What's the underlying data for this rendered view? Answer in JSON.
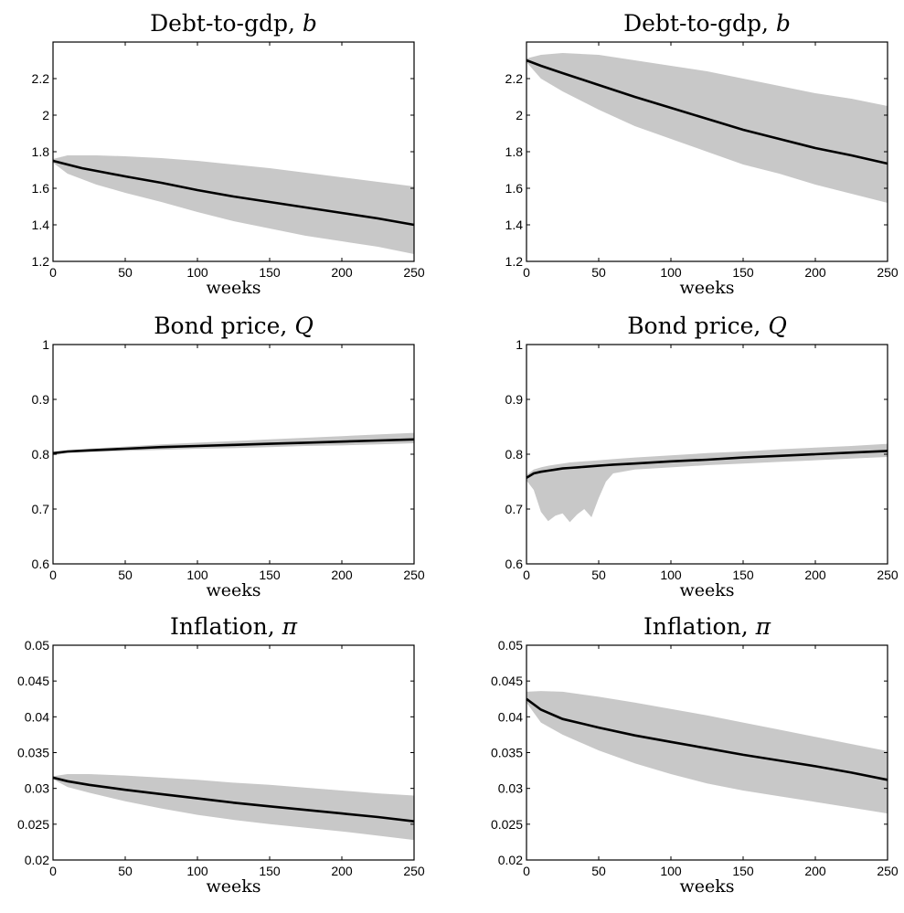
{
  "chart_data": [
    {
      "type": "line",
      "title": "Debt-to-gdp, ",
      "title_symbol": "b",
      "xlabel": "weeks",
      "ylabel": "",
      "xlim": [
        0,
        250
      ],
      "ylim": [
        1.2,
        2.4
      ],
      "xticks": [
        0,
        50,
        100,
        150,
        200,
        250
      ],
      "xtick_labels": [
        "0",
        "50",
        "100",
        "150",
        "200",
        "250"
      ],
      "yticks": [
        1.2,
        1.4,
        1.6,
        1.8,
        2,
        2.2
      ],
      "ytick_labels": [
        "1.2",
        "1.4",
        "1.6",
        "1.8",
        "2",
        "2.2"
      ],
      "x": [
        0,
        10,
        20,
        30,
        50,
        75,
        100,
        125,
        150,
        175,
        200,
        225,
        250
      ],
      "series": [
        {
          "role": "mean",
          "values": [
            1.75,
            1.73,
            1.71,
            1.695,
            1.665,
            1.63,
            1.59,
            1.555,
            1.525,
            1.495,
            1.465,
            1.435,
            1.4
          ]
        },
        {
          "role": "band_upper",
          "values": [
            1.76,
            1.78,
            1.78,
            1.78,
            1.775,
            1.765,
            1.75,
            1.73,
            1.71,
            1.685,
            1.66,
            1.635,
            1.61
          ]
        },
        {
          "role": "band_lower",
          "values": [
            1.74,
            1.68,
            1.65,
            1.62,
            1.575,
            1.525,
            1.47,
            1.42,
            1.38,
            1.34,
            1.31,
            1.28,
            1.24
          ]
        }
      ],
      "colors": {
        "mean": "#000000",
        "band": "#c8c8c8"
      },
      "grid": false
    },
    {
      "type": "line",
      "title": "Debt-to-gdp, ",
      "title_symbol": "b",
      "xlabel": "weeks",
      "ylabel": "",
      "xlim": [
        0,
        250
      ],
      "ylim": [
        1.2,
        2.4
      ],
      "xticks": [
        0,
        50,
        100,
        150,
        200,
        250
      ],
      "xtick_labels": [
        "0",
        "50",
        "100",
        "150",
        "200",
        "250"
      ],
      "yticks": [
        1.2,
        1.4,
        1.6,
        1.8,
        2,
        2.2
      ],
      "ytick_labels": [
        "1.2",
        "1.4",
        "1.6",
        "1.8",
        "2",
        "2.2"
      ],
      "x": [
        0,
        10,
        25,
        50,
        75,
        100,
        125,
        150,
        175,
        200,
        225,
        250
      ],
      "series": [
        {
          "role": "mean",
          "values": [
            2.3,
            2.27,
            2.23,
            2.165,
            2.1,
            2.04,
            1.98,
            1.92,
            1.87,
            1.82,
            1.78,
            1.735
          ]
        },
        {
          "role": "band_upper",
          "values": [
            2.31,
            2.33,
            2.34,
            2.33,
            2.3,
            2.27,
            2.24,
            2.2,
            2.16,
            2.12,
            2.09,
            2.05
          ]
        },
        {
          "role": "band_lower",
          "values": [
            2.29,
            2.2,
            2.13,
            2.03,
            1.94,
            1.87,
            1.8,
            1.73,
            1.68,
            1.62,
            1.57,
            1.52
          ]
        }
      ],
      "colors": {
        "mean": "#000000",
        "band": "#c8c8c8"
      },
      "grid": false
    },
    {
      "type": "line",
      "title": "Bond price, ",
      "title_symbol": "Q",
      "xlabel": "weeks",
      "ylabel": "",
      "xlim": [
        0,
        250
      ],
      "ylim": [
        0.6,
        1.0
      ],
      "xticks": [
        0,
        50,
        100,
        150,
        200,
        250
      ],
      "xtick_labels": [
        "0",
        "50",
        "100",
        "150",
        "200",
        "250"
      ],
      "yticks": [
        0.6,
        0.7,
        0.8,
        0.9,
        1.0
      ],
      "ytick_labels": [
        "0.6",
        "0.7",
        "0.8",
        "0.9",
        "1"
      ],
      "x": [
        0,
        10,
        25,
        50,
        75,
        100,
        125,
        150,
        175,
        200,
        225,
        250
      ],
      "series": [
        {
          "role": "mean",
          "values": [
            0.802,
            0.805,
            0.807,
            0.81,
            0.813,
            0.815,
            0.817,
            0.819,
            0.821,
            0.823,
            0.825,
            0.827
          ]
        },
        {
          "role": "band_upper",
          "values": [
            0.803,
            0.807,
            0.81,
            0.814,
            0.818,
            0.821,
            0.824,
            0.827,
            0.83,
            0.833,
            0.836,
            0.839
          ]
        },
        {
          "role": "band_lower",
          "values": [
            0.798,
            0.802,
            0.804,
            0.806,
            0.808,
            0.81,
            0.811,
            0.813,
            0.815,
            0.816,
            0.818,
            0.82
          ]
        }
      ],
      "colors": {
        "mean": "#000000",
        "band": "#c8c8c8"
      },
      "grid": false
    },
    {
      "type": "line",
      "title": "Bond price, ",
      "title_symbol": "Q",
      "xlabel": "weeks",
      "ylabel": "",
      "xlim": [
        0,
        250
      ],
      "ylim": [
        0.6,
        1.0
      ],
      "xticks": [
        0,
        50,
        100,
        150,
        200,
        250
      ],
      "xtick_labels": [
        "0",
        "50",
        "100",
        "150",
        "200",
        "250"
      ],
      "yticks": [
        0.6,
        0.7,
        0.8,
        0.9,
        1.0
      ],
      "ytick_labels": [
        "0.6",
        "0.7",
        "0.8",
        "0.9",
        "1"
      ],
      "x": [
        0,
        5,
        10,
        15,
        20,
        25,
        30,
        35,
        40,
        45,
        50,
        55,
        60,
        75,
        100,
        125,
        150,
        175,
        200,
        225,
        250
      ],
      "series": [
        {
          "role": "mean",
          "values": [
            0.757,
            0.765,
            0.768,
            0.77,
            0.772,
            0.774,
            0.775,
            0.776,
            0.777,
            0.778,
            0.779,
            0.78,
            0.781,
            0.783,
            0.787,
            0.79,
            0.794,
            0.797,
            0.8,
            0.803,
            0.806
          ]
        },
        {
          "role": "band_upper",
          "values": [
            0.762,
            0.772,
            0.776,
            0.779,
            0.781,
            0.783,
            0.785,
            0.786,
            0.787,
            0.788,
            0.789,
            0.79,
            0.791,
            0.794,
            0.798,
            0.802,
            0.805,
            0.809,
            0.812,
            0.815,
            0.819
          ]
        },
        {
          "role": "band_lower",
          "values": [
            0.752,
            0.735,
            0.695,
            0.678,
            0.688,
            0.692,
            0.676,
            0.69,
            0.7,
            0.685,
            0.72,
            0.75,
            0.765,
            0.772,
            0.776,
            0.78,
            0.783,
            0.786,
            0.789,
            0.792,
            0.795
          ]
        }
      ],
      "colors": {
        "mean": "#000000",
        "band": "#c8c8c8"
      },
      "grid": false
    },
    {
      "type": "line",
      "title": "Inflation, ",
      "title_symbol": "π",
      "xlabel": "weeks",
      "ylabel": "",
      "xlim": [
        0,
        250
      ],
      "ylim": [
        0.02,
        0.05
      ],
      "xticks": [
        0,
        50,
        100,
        150,
        200,
        250
      ],
      "xtick_labels": [
        "0",
        "50",
        "100",
        "150",
        "200",
        "250"
      ],
      "yticks": [
        0.02,
        0.025,
        0.03,
        0.035,
        0.04,
        0.045,
        0.05
      ],
      "ytick_labels": [
        "0.02",
        "0.025",
        "0.03",
        "0.035",
        "0.04",
        "0.045",
        "0.05"
      ],
      "x": [
        0,
        10,
        25,
        50,
        75,
        100,
        125,
        150,
        175,
        200,
        225,
        250
      ],
      "series": [
        {
          "role": "mean",
          "values": [
            0.0315,
            0.031,
            0.0305,
            0.0298,
            0.0292,
            0.0286,
            0.028,
            0.0275,
            0.027,
            0.0265,
            0.026,
            0.0254
          ]
        },
        {
          "role": "band_upper",
          "values": [
            0.0317,
            0.032,
            0.032,
            0.0318,
            0.0315,
            0.0312,
            0.0308,
            0.0305,
            0.0301,
            0.0297,
            0.0293,
            0.029
          ]
        },
        {
          "role": "band_lower",
          "values": [
            0.0313,
            0.0302,
            0.0294,
            0.0282,
            0.0272,
            0.0263,
            0.0256,
            0.025,
            0.0245,
            0.024,
            0.0234,
            0.0228
          ]
        }
      ],
      "colors": {
        "mean": "#000000",
        "band": "#c8c8c8"
      },
      "grid": false
    },
    {
      "type": "line",
      "title": "Inflation, ",
      "title_symbol": "π",
      "xlabel": "weeks",
      "ylabel": "",
      "xlim": [
        0,
        250
      ],
      "ylim": [
        0.02,
        0.05
      ],
      "xticks": [
        0,
        50,
        100,
        150,
        200,
        250
      ],
      "xtick_labels": [
        "0",
        "50",
        "100",
        "150",
        "200",
        "250"
      ],
      "yticks": [
        0.02,
        0.025,
        0.03,
        0.035,
        0.04,
        0.045,
        0.05
      ],
      "ytick_labels": [
        "0.02",
        "0.025",
        "0.03",
        "0.035",
        "0.04",
        "0.045",
        "0.05"
      ],
      "x": [
        0,
        10,
        25,
        50,
        75,
        100,
        125,
        150,
        175,
        200,
        225,
        250
      ],
      "series": [
        {
          "role": "mean",
          "values": [
            0.0425,
            0.041,
            0.0397,
            0.0385,
            0.0374,
            0.0365,
            0.0356,
            0.0347,
            0.0339,
            0.0331,
            0.0322,
            0.0312
          ]
        },
        {
          "role": "band_upper",
          "values": [
            0.0435,
            0.0436,
            0.0435,
            0.0428,
            0.042,
            0.0411,
            0.0402,
            0.0392,
            0.0382,
            0.0372,
            0.0362,
            0.0352
          ]
        },
        {
          "role": "band_lower",
          "values": [
            0.042,
            0.0392,
            0.0375,
            0.0353,
            0.0335,
            0.032,
            0.0307,
            0.0297,
            0.0289,
            0.0281,
            0.0273,
            0.0265
          ]
        }
      ],
      "colors": {
        "mean": "#000000",
        "band": "#c8c8c8"
      },
      "grid": false
    }
  ]
}
